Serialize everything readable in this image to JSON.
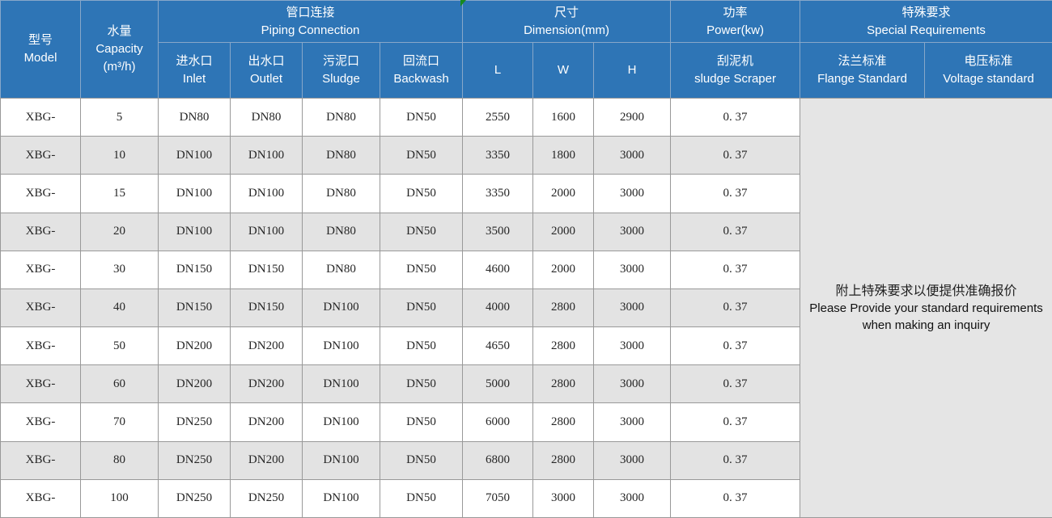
{
  "colors": {
    "header_bg": "#2e75b6",
    "header_text": "#ffffff",
    "header_border": "#87a7c9",
    "row_bg": "#ffffff",
    "row_alt_bg": "#e3e3e3",
    "cell_border": "#999999",
    "note_bg": "#e5e5e5",
    "data_text": "#262626",
    "marker_green": "#178a1f"
  },
  "table": {
    "header": {
      "model_zh": "型号",
      "model_en": "Model",
      "capacity_zh": "水量",
      "capacity_en": "Capacity",
      "capacity_unit": "(m³/h)",
      "piping_zh": "管口连接",
      "piping_en": "Piping Connection",
      "dimension_zh": "尺寸",
      "dimension_en": "Dimension(mm)",
      "power_zh": "功率",
      "power_en": "Power(kw)",
      "special_zh": "特殊要求",
      "special_en": "Special Requirements",
      "inlet_zh": "进水口",
      "inlet_en": "Inlet",
      "outlet_zh": "出水口",
      "outlet_en": "Outlet",
      "sludge_zh": "污泥口",
      "sludge_en": "Sludge",
      "backwash_zh": "回流口",
      "backwash_en": "Backwash",
      "dim_l": "L",
      "dim_w": "W",
      "dim_h": "H",
      "scraper_zh": "刮泥机",
      "scraper_en": "sludge Scraper",
      "flange_zh": "法兰标准",
      "flange_en": "Flange Standard",
      "voltage_zh": "电压标准",
      "voltage_en": "Voltage standard"
    },
    "rows": [
      [
        "XBG-",
        "5",
        "DN80",
        "DN80",
        "DN80",
        "DN50",
        "2550",
        "1600",
        "2900",
        "0. 37"
      ],
      [
        "XBG-",
        "10",
        "DN100",
        "DN100",
        "DN80",
        "DN50",
        "3350",
        "1800",
        "3000",
        "0. 37"
      ],
      [
        "XBG-",
        "15",
        "DN100",
        "DN100",
        "DN80",
        "DN50",
        "3350",
        "2000",
        "3000",
        "0. 37"
      ],
      [
        "XBG-",
        "20",
        "DN100",
        "DN100",
        "DN80",
        "DN50",
        "3500",
        "2000",
        "3000",
        "0. 37"
      ],
      [
        "XBG-",
        "30",
        "DN150",
        "DN150",
        "DN80",
        "DN50",
        "4600",
        "2000",
        "3000",
        "0. 37"
      ],
      [
        "XBG-",
        "40",
        "DN150",
        "DN150",
        "DN100",
        "DN50",
        "4000",
        "2800",
        "3000",
        "0. 37"
      ],
      [
        "XBG-",
        "50",
        "DN200",
        "DN200",
        "DN100",
        "DN50",
        "4650",
        "2800",
        "3000",
        "0. 37"
      ],
      [
        "XBG-",
        "60",
        "DN200",
        "DN200",
        "DN100",
        "DN50",
        "5000",
        "2800",
        "3000",
        "0. 37"
      ],
      [
        "XBG-",
        "70",
        "DN250",
        "DN200",
        "DN100",
        "DN50",
        "6000",
        "2800",
        "3000",
        "0. 37"
      ],
      [
        "XBG-",
        "80",
        "DN250",
        "DN200",
        "DN100",
        "DN50",
        "6800",
        "2800",
        "3000",
        "0. 37"
      ],
      [
        "XBG-",
        "100",
        "DN250",
        "DN250",
        "DN100",
        "DN50",
        "7050",
        "3000",
        "3000",
        "0. 37"
      ]
    ],
    "special_note": {
      "zh": "附上特殊要求以便提供准确报价",
      "en1": "Please Provide your standard requirements",
      "en2": "when making an inquiry"
    }
  }
}
